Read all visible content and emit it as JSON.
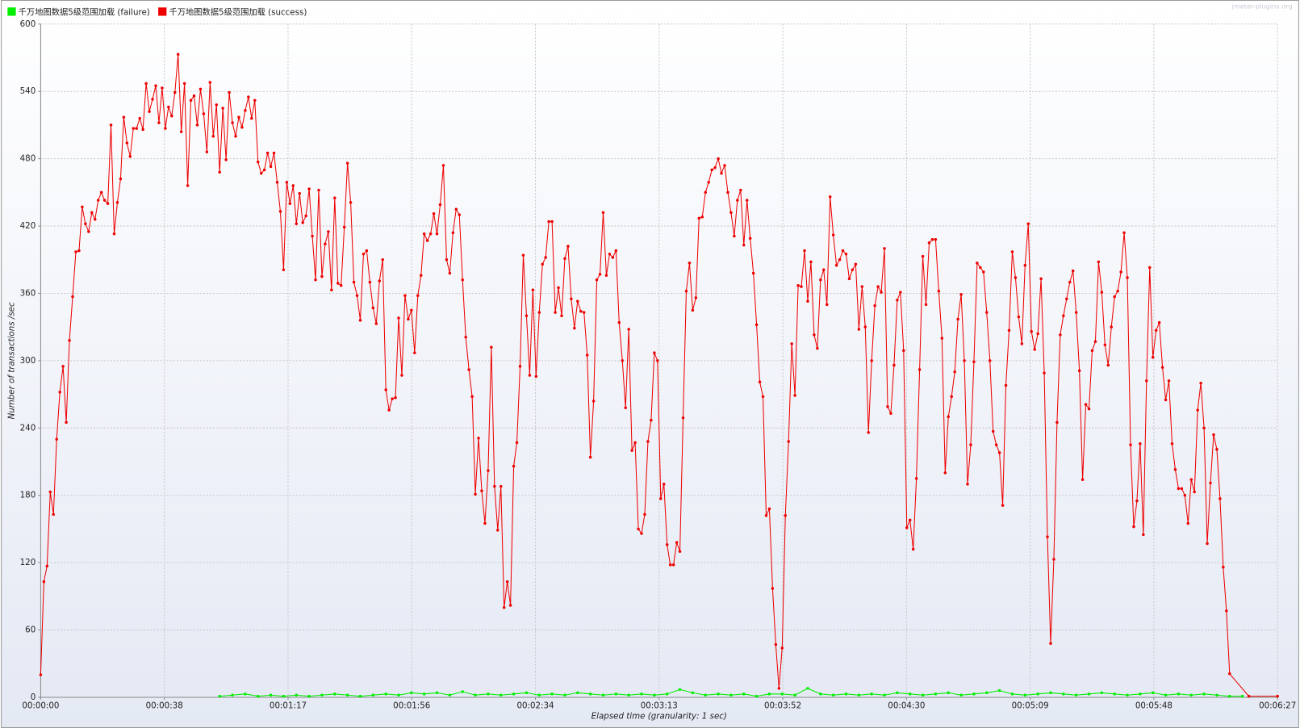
{
  "chart_data": {
    "type": "line",
    "watermark": "jmeter-plugins.org",
    "xlabel": "Elapsed time (granularity: 1 sec)",
    "ylabel": "Number of transactions /sec",
    "xlim": [
      0,
      387
    ],
    "ylim": [
      0,
      600
    ],
    "yticks": [
      0,
      60,
      120,
      180,
      240,
      300,
      360,
      420,
      480,
      540,
      600
    ],
    "xticks": [
      {
        "value": 0,
        "label": "00:00:00"
      },
      {
        "value": 38.7,
        "label": "00:00:38"
      },
      {
        "value": 77.4,
        "label": "00:01:17"
      },
      {
        "value": 116.1,
        "label": "00:01:56"
      },
      {
        "value": 154.8,
        "label": "00:02:34"
      },
      {
        "value": 193.5,
        "label": "00:03:13"
      },
      {
        "value": 232.2,
        "label": "00:03:52"
      },
      {
        "value": 270.9,
        "label": "00:04:30"
      },
      {
        "value": 309.6,
        "label": "00:05:09"
      },
      {
        "value": 348.3,
        "label": "00:05:48"
      },
      {
        "value": 387,
        "label": "00:06:27"
      }
    ],
    "grid": true,
    "series": [
      {
        "name": "千万地图数据5级范围加载 (failure)",
        "color": "#00ee00",
        "x": [
          56,
          60,
          64,
          68,
          72,
          76,
          80,
          84,
          88,
          92,
          96,
          100,
          104,
          108,
          112,
          116,
          120,
          124,
          128,
          132,
          136,
          140,
          144,
          148,
          152,
          156,
          160,
          164,
          168,
          172,
          176,
          180,
          184,
          188,
          192,
          196,
          200,
          204,
          208,
          212,
          216,
          220,
          224,
          228,
          232,
          236,
          240,
          244,
          248,
          252,
          256,
          260,
          264,
          268,
          272,
          276,
          280,
          284,
          288,
          292,
          296,
          300,
          304,
          308,
          312,
          316,
          320,
          324,
          328,
          332,
          336,
          340,
          344,
          348,
          352,
          356,
          360,
          364,
          368,
          372,
          376
        ],
        "values": [
          1,
          2,
          3,
          1,
          2,
          1,
          2,
          1,
          2,
          3,
          2,
          1,
          2,
          3,
          2,
          4,
          3,
          4,
          2,
          5,
          2,
          3,
          2,
          3,
          4,
          2,
          3,
          2,
          4,
          3,
          2,
          3,
          2,
          3,
          2,
          3,
          7,
          4,
          2,
          3,
          2,
          3,
          1,
          3,
          3,
          2,
          8,
          3,
          2,
          3,
          2,
          3,
          2,
          4,
          3,
          2,
          3,
          4,
          2,
          3,
          4,
          6,
          3,
          2,
          3,
          4,
          3,
          2,
          3,
          4,
          3,
          2,
          3,
          4,
          2,
          3,
          2,
          3,
          2,
          1,
          1
        ]
      },
      {
        "name": "千万地图数据5级范围加载 (success)",
        "color": "#ee0000",
        "x": [
          0,
          1,
          2,
          3,
          4,
          5,
          6,
          7,
          8,
          9,
          10,
          11,
          12,
          13,
          14,
          15,
          16,
          17,
          18,
          19,
          20,
          21,
          22,
          23,
          24,
          25,
          26,
          27,
          28,
          29,
          30,
          31,
          32,
          33,
          34,
          35,
          36,
          37,
          38,
          39,
          40,
          41,
          42,
          43,
          44,
          45,
          46,
          47,
          48,
          49,
          50,
          51,
          52,
          53,
          54,
          55,
          56,
          57,
          58,
          59,
          60,
          61,
          62,
          63,
          64,
          65,
          66,
          67,
          68,
          69,
          70,
          71,
          72,
          73,
          74,
          75,
          76,
          77,
          78,
          79,
          80,
          81,
          82,
          83,
          84,
          85,
          86,
          87,
          88,
          89,
          90,
          91,
          92,
          93,
          94,
          95,
          96,
          97,
          98,
          99,
          100,
          101,
          102,
          103,
          104,
          105,
          106,
          107,
          108,
          109,
          110,
          111,
          112,
          113,
          114,
          115,
          116,
          117,
          118,
          119,
          120,
          121,
          122,
          123,
          124,
          125,
          126,
          127,
          128,
          129,
          130,
          131,
          132,
          133,
          134,
          135,
          136,
          137,
          138,
          139,
          140,
          141,
          142,
          143,
          144,
          145,
          146,
          147,
          148,
          149,
          150,
          151,
          152,
          153,
          154,
          155,
          156,
          157,
          158,
          159,
          160,
          161,
          162,
          163,
          164,
          165,
          166,
          167,
          168,
          169,
          170,
          171,
          172,
          173,
          174,
          175,
          176,
          177,
          178,
          179,
          180,
          181,
          182,
          183,
          184,
          185,
          186,
          187,
          188,
          189,
          190,
          191,
          192,
          193,
          194,
          195,
          196,
          197,
          198,
          199,
          200,
          201,
          202,
          203,
          204,
          205,
          206,
          207,
          208,
          209,
          210,
          211,
          212,
          213,
          214,
          215,
          216,
          217,
          218,
          219,
          220,
          221,
          222,
          223,
          224,
          225,
          226,
          227,
          228,
          229,
          230,
          231,
          232,
          233,
          234,
          235,
          236,
          237,
          238,
          239,
          240,
          241,
          242,
          243,
          244,
          245,
          246,
          247,
          248,
          249,
          250,
          251,
          252,
          253,
          254,
          255,
          256,
          257,
          258,
          259,
          260,
          261,
          262,
          263,
          264,
          265,
          266,
          267,
          268,
          269,
          270,
          271,
          272,
          273,
          274,
          275,
          276,
          277,
          278,
          279,
          280,
          281,
          282,
          283,
          284,
          285,
          286,
          287,
          288,
          289,
          290,
          291,
          292,
          293,
          294,
          295,
          296,
          297,
          298,
          299,
          300,
          301,
          302,
          303,
          304,
          305,
          306,
          307,
          308,
          309,
          310,
          311,
          312,
          313,
          314,
          315,
          316,
          317,
          318,
          319,
          320,
          321,
          322,
          323,
          324,
          325,
          326,
          327,
          328,
          329,
          330,
          331,
          332,
          333,
          334,
          335,
          336,
          337,
          338,
          339,
          340,
          341,
          342,
          343,
          344,
          345,
          346,
          347,
          348,
          349,
          350,
          351,
          352,
          353,
          354,
          355,
          356,
          357,
          358,
          359,
          360,
          361,
          362,
          363,
          364,
          365,
          366,
          367,
          368,
          369,
          370,
          371,
          372,
          378,
          387
        ],
        "values": [
          20,
          103,
          117,
          183,
          163,
          230,
          272,
          295,
          245,
          318,
          357,
          397,
          398,
          437,
          422,
          415,
          432,
          426,
          443,
          450,
          443,
          440,
          510,
          413,
          441,
          462,
          517,
          494,
          482,
          507,
          507,
          516,
          506,
          547,
          522,
          533,
          545,
          512,
          543,
          507,
          526,
          518,
          539,
          573,
          504,
          547,
          456,
          532,
          536,
          510,
          542,
          520,
          486,
          548,
          500,
          528,
          468,
          525,
          479,
          539,
          512,
          500,
          517,
          508,
          523,
          535,
          516,
          532,
          477,
          467,
          470,
          485,
          473,
          485,
          459,
          433,
          381,
          459,
          440,
          456,
          422,
          449,
          423,
          429,
          453,
          411,
          372,
          452,
          375,
          404,
          415,
          363,
          445,
          369,
          367,
          419,
          476,
          441,
          370,
          358,
          336,
          395,
          398,
          370,
          347,
          333,
          371,
          390,
          274,
          256,
          266,
          267,
          338,
          287,
          358,
          337,
          345,
          307,
          358,
          376,
          413,
          407,
          413,
          431,
          413,
          439,
          474,
          390,
          378,
          414,
          435,
          430,
          372,
          321,
          292,
          268,
          181,
          231,
          184,
          155,
          202,
          312,
          188,
          149,
          188,
          80,
          103,
          82,
          206,
          227,
          295,
          394,
          340,
          287,
          363,
          286,
          343,
          386,
          392,
          424,
          424,
          343,
          365,
          340,
          391,
          402,
          355,
          329,
          353,
          344,
          343,
          305,
          214,
          264,
          372,
          377,
          432,
          376,
          395,
          392,
          398,
          334,
          300,
          258,
          328,
          220,
          227,
          150,
          146,
          163,
          228,
          247,
          307,
          300,
          177,
          190,
          136,
          118,
          118,
          138,
          130,
          249,
          362,
          387,
          345,
          356,
          427,
          428,
          450,
          459,
          470,
          472,
          480,
          467,
          474,
          450,
          432,
          411,
          443,
          452,
          403,
          443,
          409,
          378,
          332,
          281,
          268,
          162,
          168,
          97,
          47,
          8,
          44,
          162,
          228,
          315,
          269,
          367,
          366,
          398,
          353,
          388,
          323,
          311,
          372,
          381,
          350,
          446,
          412,
          385,
          390,
          398,
          395,
          373,
          381,
          386,
          328,
          366,
          330,
          236,
          300,
          349,
          366,
          361,
          400,
          259,
          253,
          296,
          354,
          361,
          309,
          151,
          158,
          132,
          195,
          292,
          393,
          350,
          405,
          408,
          408,
          362,
          320,
          200,
          250,
          268,
          290,
          337,
          359,
          300,
          190,
          225,
          299,
          387,
          383,
          379,
          343,
          300,
          237,
          225,
          218,
          171,
          278,
          327,
          397,
          374,
          339,
          315,
          385,
          422,
          326,
          310,
          324,
          373,
          289,
          143,
          48,
          123,
          245,
          323,
          340,
          355,
          370,
          380,
          343,
          291,
          194,
          261,
          257,
          309,
          317,
          388,
          361,
          314,
          296,
          330,
          357,
          362,
          379,
          414,
          374,
          225,
          152,
          175,
          226,
          145,
          282,
          383,
          303,
          327,
          334,
          294,
          265,
          282,
          226,
          203,
          186,
          186,
          180,
          155,
          194,
          183,
          256,
          280,
          240,
          137,
          191,
          234,
          221,
          177,
          116,
          77,
          21,
          1,
          1
        ]
      }
    ]
  }
}
